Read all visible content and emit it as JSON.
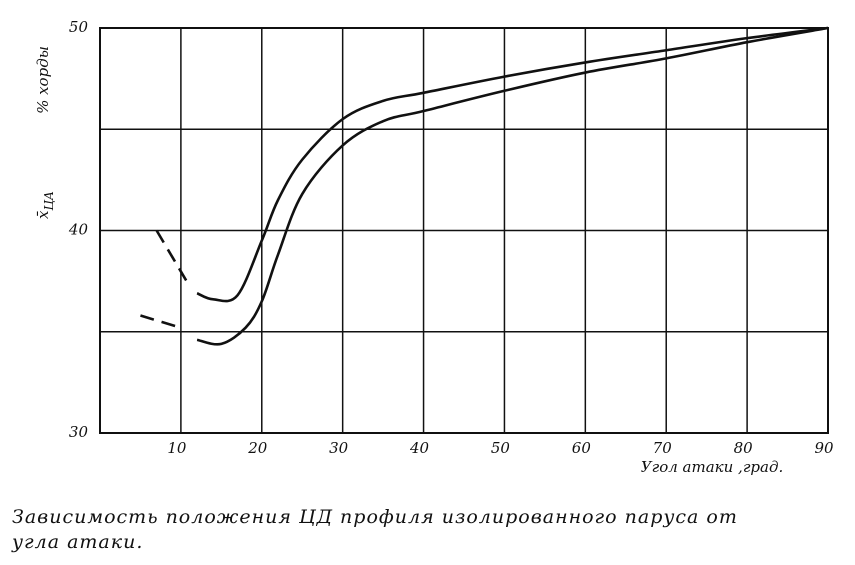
{
  "chart_data": {
    "type": "line",
    "ylabel": "% хорды",
    "ylabel_symbol": "x̄",
    "ylabel_subscript": "ЦА",
    "xlabel": "Угол атаки ,град.",
    "caption_lines": [
      "Зависимость  положения ЦД  профиля  изолированного  паруса от",
      "угла атаки."
    ],
    "xlim": [
      0,
      90
    ],
    "xticks": [
      10,
      20,
      30,
      40,
      50,
      60,
      70,
      80,
      90
    ],
    "ylim": [
      30,
      50
    ],
    "yticks": [
      30,
      40,
      50
    ],
    "minor_yticks": [
      35,
      45
    ],
    "grid": true,
    "color": "#111111",
    "series": [
      {
        "x": [
          12,
          14,
          17,
          20,
          22,
          25,
          30,
          35,
          40,
          50,
          60,
          70,
          80,
          90
        ],
        "values": [
          36.9,
          36.6,
          36.8,
          39.5,
          41.5,
          43.5,
          45.5,
          46.4,
          46.8,
          47.6,
          48.3,
          48.9,
          49.5,
          50
        ]
      },
      {
        "x": [
          12,
          15,
          18,
          20,
          22,
          25,
          30,
          35,
          40,
          50,
          60,
          70,
          80,
          90
        ],
        "values": [
          34.6,
          34.4,
          35.2,
          36.5,
          38.8,
          41.8,
          44.2,
          45.4,
          45.9,
          46.9,
          47.8,
          48.5,
          49.3,
          50
        ]
      },
      {
        "x": [
          7,
          11
        ],
        "values": [
          40.0,
          37.3
        ],
        "dashed": true
      },
      {
        "x": [
          5,
          10
        ],
        "values": [
          35.8,
          35.2
        ],
        "dashed": true
      }
    ]
  }
}
